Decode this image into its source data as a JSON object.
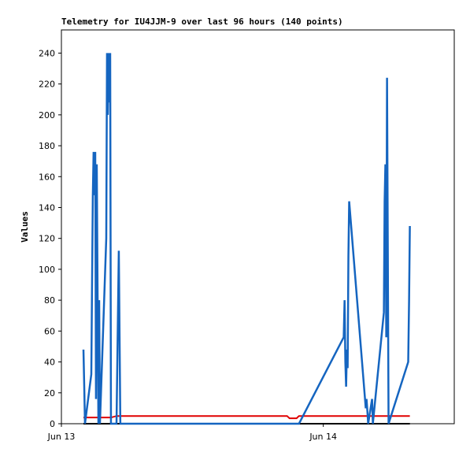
{
  "chart_data": {
    "type": "line",
    "title": "Telemetry for IU4JJM-9 over last 96 hours (140 points)",
    "y_label": "Values",
    "xlim": [
      0,
      36
    ],
    "xticks": [
      {
        "value": 0,
        "label": "Jun 13"
      },
      {
        "value": 24,
        "label": "Jun 14"
      }
    ],
    "ylim": [
      0,
      255
    ],
    "yticks": [
      0,
      20,
      40,
      60,
      80,
      100,
      120,
      140,
      160,
      180,
      200,
      220,
      240
    ],
    "grid": false,
    "x": [
      2.02,
      2.09,
      2.16,
      2.74,
      2.81,
      2.88,
      2.95,
      3.03,
      3.1,
      3.17,
      3.24,
      3.32,
      3.39,
      3.46,
      3.53,
      4.11,
      4.18,
      4.25,
      4.32,
      4.4,
      4.47,
      4.54,
      5.05,
      5.26,
      5.33,
      5.4,
      20.68,
      20.9,
      21.55,
      21.77,
      25.87,
      25.95,
      26.02,
      26.09,
      26.16,
      26.23,
      26.3,
      26.37,
      27.89,
      27.96,
      28.04,
      28.11,
      28.47,
      28.54,
      29.55,
      29.62,
      29.69,
      29.77,
      29.84,
      29.91,
      29.98,
      31.78,
      31.86,
      31.93
    ],
    "series": [
      {
        "color": "#000000",
        "values": [
          0,
          0,
          0,
          0,
          0,
          0,
          0,
          0,
          0,
          0,
          0,
          0,
          0,
          0,
          0,
          0,
          0,
          0,
          0,
          0,
          0,
          0,
          0,
          0,
          0,
          0,
          0,
          0,
          0,
          0,
          0,
          0,
          0,
          0,
          0,
          0,
          0,
          0,
          0,
          0,
          0,
          0,
          0,
          0,
          0,
          0,
          0,
          0,
          0,
          0,
          0,
          0,
          0,
          0
        ]
      },
      {
        "color": "#e00000",
        "values": [
          4,
          4,
          4,
          4,
          4,
          4,
          4,
          4,
          4,
          4,
          4,
          4,
          4,
          4,
          4,
          4,
          4,
          4,
          4,
          4,
          4,
          4,
          5,
          5,
          5,
          5,
          5,
          3.5,
          3.5,
          5,
          5,
          5,
          5,
          5,
          5,
          5,
          5,
          5,
          5,
          5,
          5,
          5,
          5,
          5,
          5,
          5,
          5,
          5,
          5,
          5,
          5,
          5,
          5,
          5
        ]
      },
      {
        "color": "#1565c0",
        "values": [
          48,
          25,
          0,
          32,
          92,
          148,
          176,
          148,
          176,
          16,
          168,
          80,
          0,
          80,
          0,
          120,
          240,
          200,
          240,
          208,
          240,
          0,
          0,
          112,
          56,
          0,
          0,
          0,
          0,
          0,
          56,
          80,
          40,
          24,
          48,
          36,
          108,
          144,
          10,
          16,
          8,
          0,
          16,
          0,
          72,
          144,
          168,
          56,
          224,
          112,
          0,
          40,
          80,
          128
        ]
      }
    ]
  }
}
